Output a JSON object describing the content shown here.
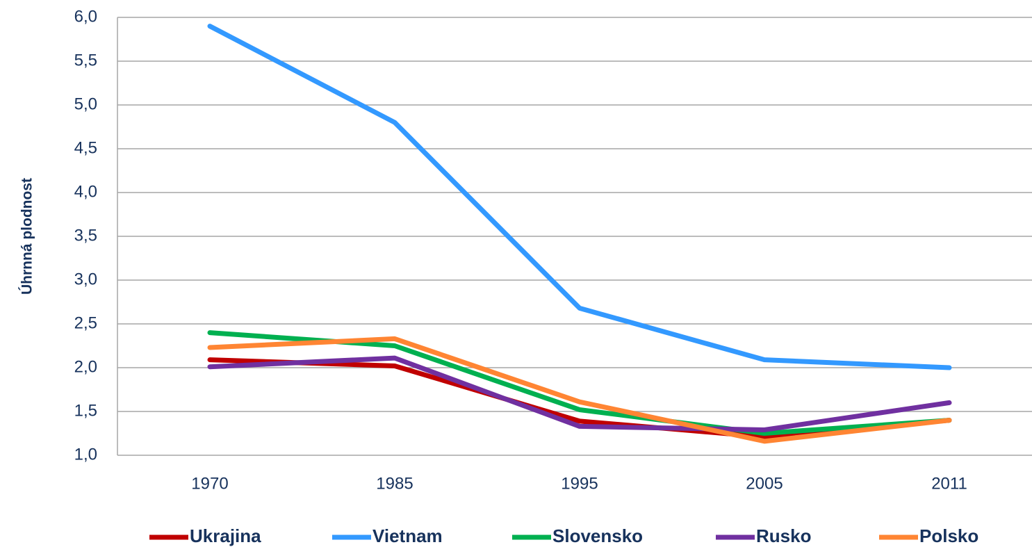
{
  "chart_data": {
    "type": "line",
    "y_label": "Úhrnná plodnost",
    "categories": [
      "1970",
      "1985",
      "1995",
      "2005",
      "2011"
    ],
    "series": [
      {
        "name": "Ukrajina",
        "color": "#c00000",
        "values": [
          2.09,
          2.02,
          1.39,
          1.21,
          1.4
        ]
      },
      {
        "name": "Vietnam",
        "color": "#3399ff",
        "values": [
          5.9,
          4.8,
          2.68,
          2.09,
          2.0
        ]
      },
      {
        "name": "Slovensko",
        "color": "#00b050",
        "values": [
          2.4,
          2.25,
          1.52,
          1.25,
          1.4
        ]
      },
      {
        "name": "Rusko",
        "color": "#7030a0",
        "values": [
          2.01,
          2.11,
          1.33,
          1.29,
          1.6
        ]
      },
      {
        "name": "Polsko",
        "color": "#ff8533",
        "values": [
          2.23,
          2.33,
          1.61,
          1.16,
          1.4
        ]
      }
    ],
    "ylim": [
      1.0,
      6.0
    ],
    "yticks": [
      {
        "value": 1.0,
        "label": "1,0"
      },
      {
        "value": 1.5,
        "label": "1,5"
      },
      {
        "value": 2.0,
        "label": "2,0"
      },
      {
        "value": 2.5,
        "label": "2,5"
      },
      {
        "value": 3.0,
        "label": "3,0"
      },
      {
        "value": 3.5,
        "label": "3,5"
      },
      {
        "value": 4.0,
        "label": "4,0"
      },
      {
        "value": 4.5,
        "label": "4,5"
      },
      {
        "value": 5.0,
        "label": "5,0"
      },
      {
        "value": 5.5,
        "label": "5,5"
      },
      {
        "value": 6.0,
        "label": "6,0"
      }
    ],
    "grid": true,
    "legend": "bottom"
  }
}
